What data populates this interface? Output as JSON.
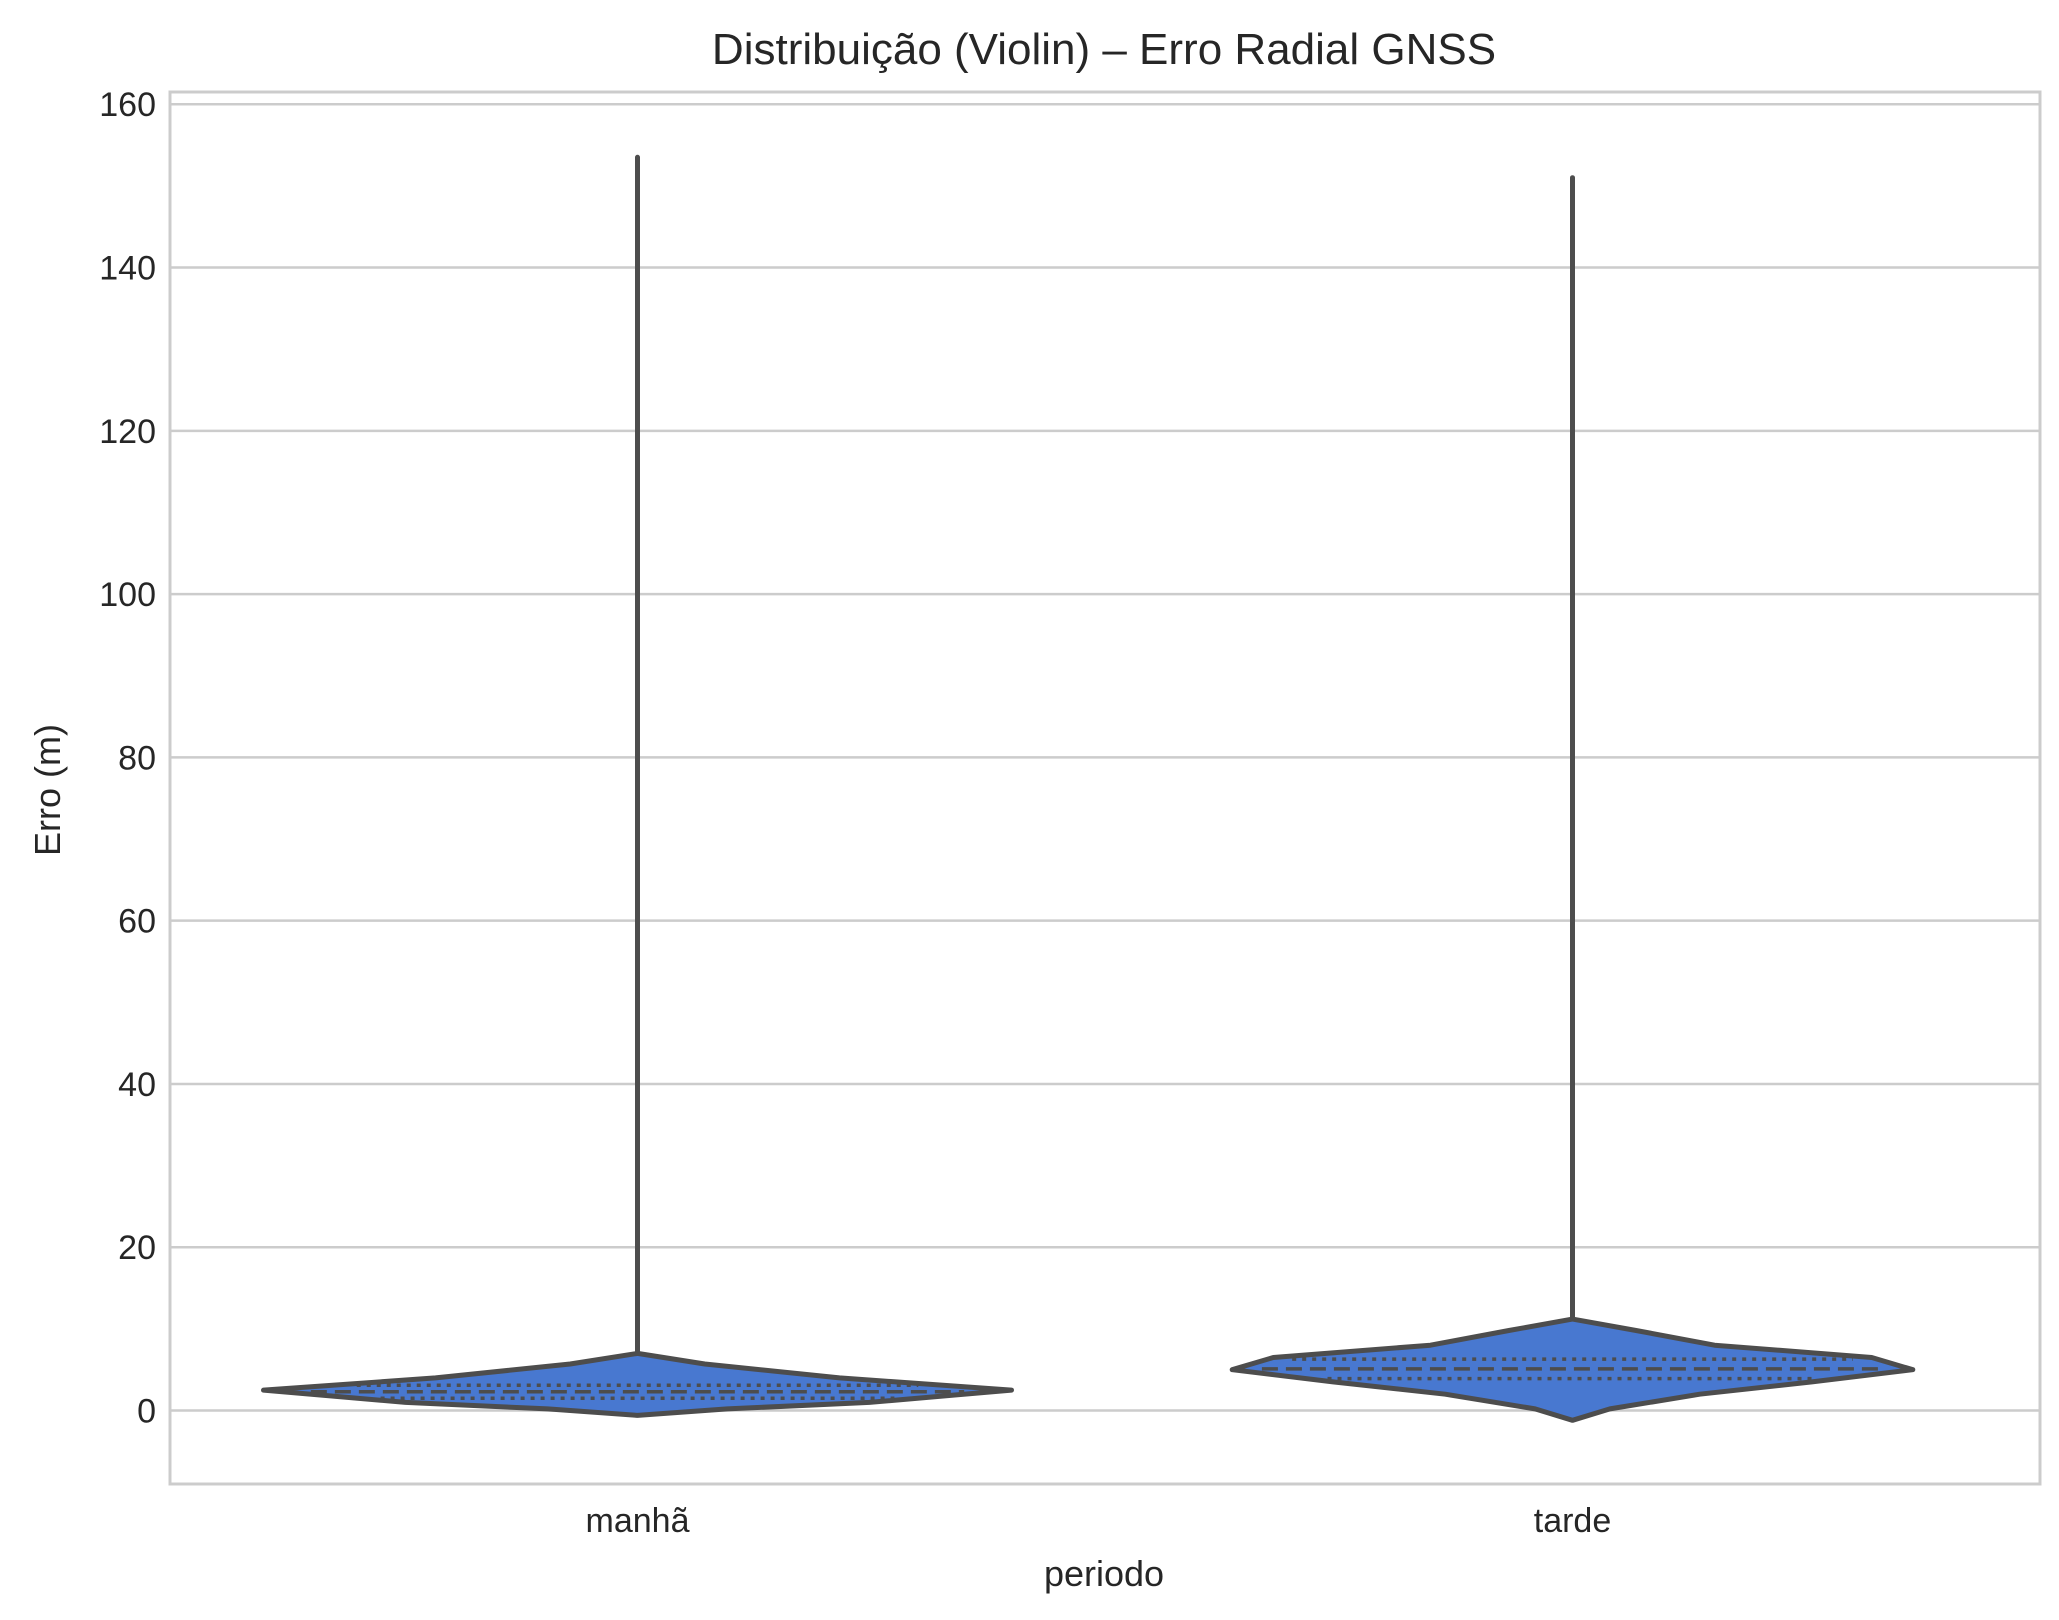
{
  "chart_data": {
    "type": "violin",
    "title": "Distribuição (Violin) – Erro Radial GNSS",
    "xlabel": "periodo",
    "ylabel": "Erro (m)",
    "categories": [
      "manhã",
      "tarde"
    ],
    "ylim": [
      -9,
      161.5
    ],
    "yticks": [
      0,
      20,
      40,
      60,
      80,
      100,
      120,
      140,
      160
    ],
    "grid": "horizontal",
    "fill_color": "#4878d0",
    "edge_color": "#4d4d4d",
    "grid_color": "#cccccc",
    "spine_color": "#cccccc",
    "violins": [
      {
        "category": "manhã",
        "min": -0.6,
        "max": 153.5,
        "q1": 1.5,
        "median": 2.3,
        "q3": 3.1,
        "density_profile": [
          {
            "y": -0.6,
            "width": 0.0
          },
          {
            "y": 0.2,
            "width": 0.24
          },
          {
            "y": 1.0,
            "width": 0.62
          },
          {
            "y": 2.5,
            "width": 1.0
          },
          {
            "y": 4.0,
            "width": 0.54
          },
          {
            "y": 5.7,
            "width": 0.18
          },
          {
            "y": 7.0,
            "width": 0.0
          },
          {
            "y": 153.5,
            "width": 0.0
          }
        ]
      },
      {
        "category": "tarde",
        "min": -1.2,
        "max": 151.0,
        "q1": 3.9,
        "median": 5.1,
        "q3": 6.3,
        "density_profile": [
          {
            "y": -1.2,
            "width": 0.0
          },
          {
            "y": 0.2,
            "width": 0.1
          },
          {
            "y": 2.0,
            "width": 0.34
          },
          {
            "y": 3.5,
            "width": 0.64
          },
          {
            "y": 5.0,
            "width": 0.91
          },
          {
            "y": 6.5,
            "width": 0.8
          },
          {
            "y": 8.0,
            "width": 0.38
          },
          {
            "y": 9.8,
            "width": 0.17
          },
          {
            "y": 11.2,
            "width": 0.0
          },
          {
            "y": 151.0,
            "width": 0.0
          }
        ]
      }
    ]
  }
}
